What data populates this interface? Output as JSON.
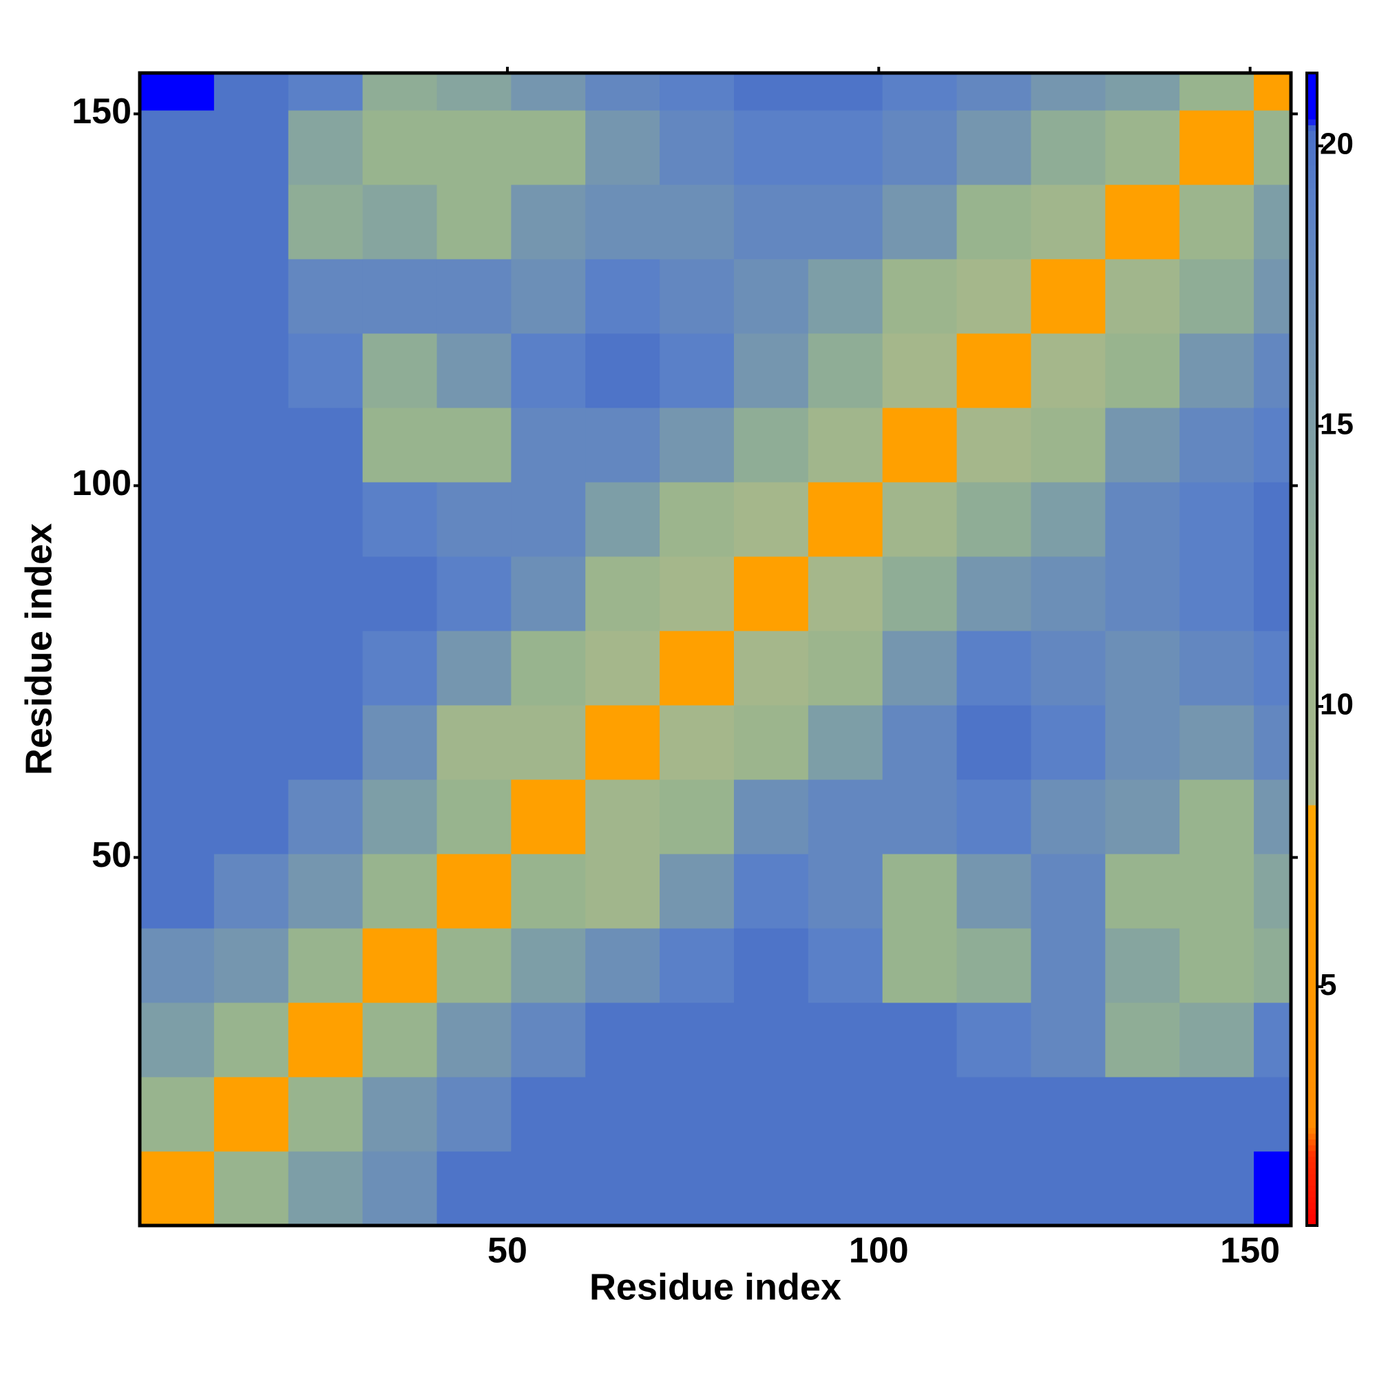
{
  "chart_data": {
    "type": "heatmap",
    "x_label": "Residue index",
    "y_label": "Residue index",
    "xlim": [
      0.5,
      155.5
    ],
    "ylim": [
      0.5,
      155.5
    ],
    "xticks": [
      50,
      100,
      150
    ],
    "yticks": [
      50,
      100,
      150
    ],
    "x_edges": [
      0.5,
      10.5,
      20.5,
      30.5,
      40.5,
      50.5,
      60.5,
      70.5,
      80.5,
      90.5,
      100.5,
      110.5,
      120.5,
      130.5,
      140.5,
      150.5,
      155.5
    ],
    "y_edges": [
      0.5,
      10.5,
      20.5,
      30.5,
      40.5,
      50.5,
      60.5,
      70.5,
      80.5,
      90.5,
      100.5,
      110.5,
      120.5,
      130.5,
      140.5,
      150.5,
      155.5
    ],
    "zlim": [
      0.74,
      21.3
    ],
    "zticks": [
      5,
      10,
      15,
      20
    ],
    "colorscale": [
      {
        "value": 0.74,
        "color": "#ff0000"
      },
      {
        "value": 2,
        "color": "#ff3000"
      },
      {
        "value": 2.5,
        "color": "#ff8c00"
      },
      {
        "value": 8.2,
        "color": "#ffa500"
      },
      {
        "value": 8.3,
        "color": "#a8b88a"
      },
      {
        "value": 12,
        "color": "#98b48e"
      },
      {
        "value": 19,
        "color": "#5a80c8"
      },
      {
        "value": 20.3,
        "color": "#4a70c8"
      },
      {
        "value": 20.5,
        "color": "#0000ff"
      },
      {
        "value": 21.3,
        "color": "#0000ff"
      }
    ],
    "z": [
      [
        7,
        12,
        15,
        17,
        20,
        20,
        20,
        20,
        20,
        20,
        20,
        20,
        20,
        20,
        20,
        21
      ],
      [
        12,
        7,
        12,
        16,
        18,
        20,
        20,
        20,
        20,
        20,
        20,
        20,
        20,
        20,
        20,
        20
      ],
      [
        15,
        12,
        7,
        12,
        16,
        18,
        20,
        20,
        20,
        20,
        20,
        19,
        18,
        13,
        14,
        19
      ],
      [
        17,
        16,
        12,
        7,
        12,
        15,
        17,
        19,
        20,
        19,
        12,
        13,
        18,
        14,
        12,
        13
      ],
      [
        20,
        18,
        16,
        12,
        7,
        12,
        10,
        16,
        19,
        18,
        12,
        16,
        18,
        12,
        12,
        14
      ],
      [
        20,
        20,
        18,
        15,
        12,
        7,
        10,
        12,
        17,
        18,
        18,
        19,
        17,
        16,
        12,
        16
      ],
      [
        20,
        20,
        20,
        17,
        10,
        10,
        7,
        9,
        11,
        15,
        18,
        20,
        19,
        17,
        16,
        18
      ],
      [
        20,
        20,
        20,
        19,
        16,
        12,
        9,
        7,
        9,
        11,
        16,
        19,
        18,
        17,
        18,
        19
      ],
      [
        20,
        20,
        20,
        20,
        19,
        17,
        11,
        9,
        7,
        9,
        13,
        16,
        17,
        18,
        19,
        20
      ],
      [
        20,
        20,
        20,
        19,
        18,
        18,
        15,
        11,
        9,
        7,
        10,
        13,
        15,
        18,
        19,
        20
      ],
      [
        20,
        20,
        20,
        12,
        12,
        18,
        18,
        16,
        13,
        10,
        7,
        9,
        11,
        16,
        18,
        19
      ],
      [
        20,
        20,
        19,
        13,
        16,
        19,
        20,
        19,
        16,
        13,
        9,
        7,
        9,
        12,
        16,
        18
      ],
      [
        20,
        20,
        18,
        18,
        18,
        17,
        19,
        18,
        17,
        15,
        11,
        9,
        7,
        10,
        13,
        16
      ],
      [
        20,
        20,
        13,
        14,
        12,
        16,
        17,
        17,
        18,
        18,
        16,
        12,
        10,
        7,
        11,
        15
      ],
      [
        20,
        20,
        14,
        12,
        12,
        12,
        16,
        18,
        19,
        19,
        18,
        16,
        13,
        11,
        7,
        12
      ],
      [
        21,
        20,
        19,
        13,
        14,
        16,
        18,
        19,
        20,
        20,
        19,
        18,
        16,
        15,
        12,
        7
      ]
    ]
  }
}
